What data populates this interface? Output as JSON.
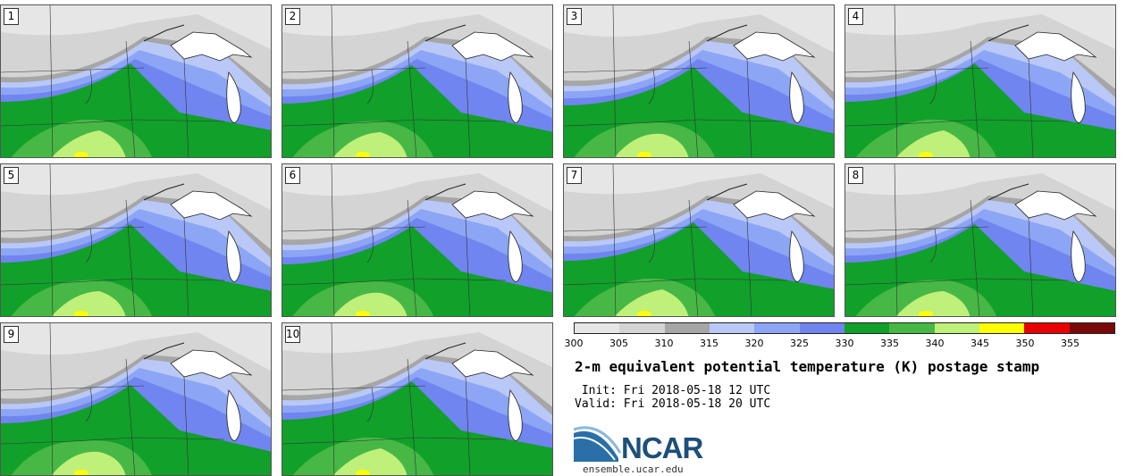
{
  "panels": [
    {
      "label": "1"
    },
    {
      "label": "2"
    },
    {
      "label": "3"
    },
    {
      "label": "4"
    },
    {
      "label": "5"
    },
    {
      "label": "6"
    },
    {
      "label": "7"
    },
    {
      "label": "8"
    },
    {
      "label": "9"
    },
    {
      "label": "10"
    }
  ],
  "colorbar": {
    "ticks": [
      "300",
      "305",
      "310",
      "315",
      "320",
      "325",
      "330",
      "335",
      "340",
      "345",
      "350",
      "355"
    ],
    "colors": [
      "#e6e6e6",
      "#d4d4d4",
      "#a6a6a6",
      "#b9c8f7",
      "#8ca6f5",
      "#7085ef",
      "#11a02a",
      "#47b845",
      "#bff07a",
      "#ffff00",
      "#e80000",
      "#7a0a0a"
    ]
  },
  "title": "2-m equivalent potential temperature (K) postage stamp",
  "init": " Init: Fri 2018-05-18 12 UTC",
  "valid": "Valid: Fri 2018-05-18 20 UTC",
  "logo": {
    "text": "NCAR",
    "url": "ensemble.ucar.edu"
  }
}
